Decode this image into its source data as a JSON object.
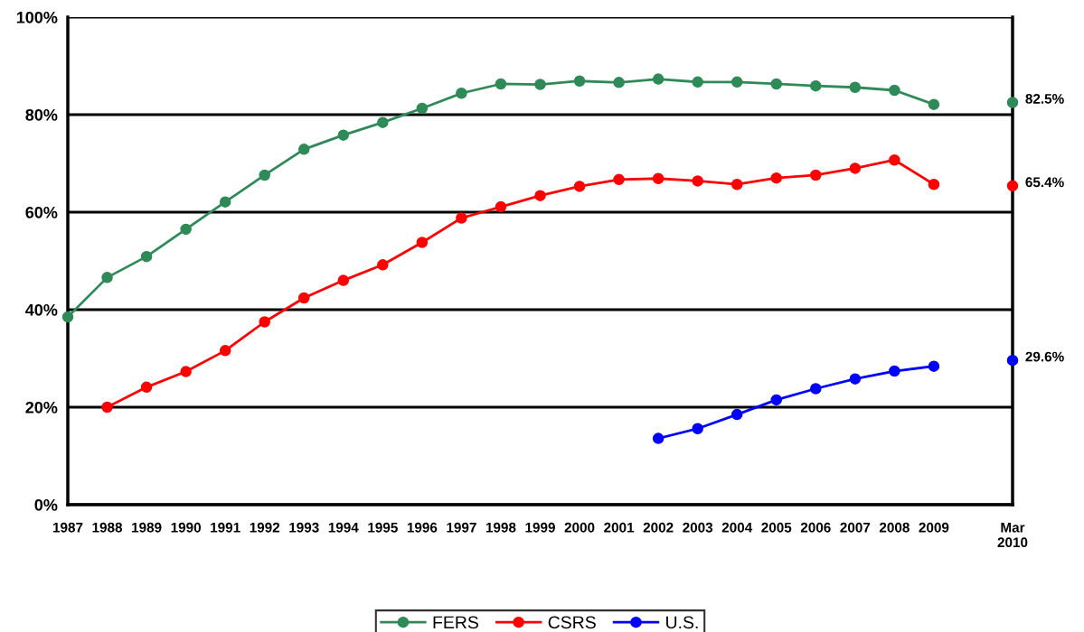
{
  "chart_data": {
    "type": "line",
    "categories": [
      "1987",
      "1988",
      "1989",
      "1990",
      "1991",
      "1992",
      "1993",
      "1994",
      "1995",
      "1996",
      "1997",
      "1998",
      "1999",
      "2000",
      "2001",
      "2002",
      "2003",
      "2004",
      "2005",
      "2006",
      "2007",
      "2008",
      "2009",
      null,
      "Mar\n2010"
    ],
    "series": [
      {
        "name": "FERS",
        "color": "#2e8b57",
        "values": [
          38.5,
          46.6,
          50.9,
          56.5,
          62.1,
          67.6,
          72.9,
          75.8,
          78.4,
          81.3,
          84.4,
          86.3,
          86.2,
          86.9,
          86.6,
          87.3,
          86.7,
          86.7,
          86.3,
          85.9,
          85.6,
          85.0,
          82.1,
          null,
          82.5
        ],
        "value_labels": [
          null,
          null,
          null,
          null,
          null,
          null,
          null,
          null,
          null,
          null,
          null,
          null,
          null,
          null,
          null,
          null,
          null,
          null,
          null,
          null,
          null,
          null,
          null,
          null,
          "82.5%"
        ]
      },
      {
        "name": "CSRS",
        "color": "#ff0000",
        "values": [
          null,
          20.0,
          24.1,
          27.3,
          31.6,
          37.5,
          42.4,
          46.0,
          49.2,
          53.8,
          58.8,
          61.1,
          63.4,
          65.3,
          66.7,
          66.9,
          66.4,
          65.7,
          67.0,
          67.6,
          69.0,
          70.7,
          65.7,
          null,
          65.4
        ],
        "value_labels": [
          null,
          null,
          null,
          null,
          null,
          null,
          null,
          null,
          null,
          null,
          null,
          null,
          null,
          null,
          null,
          null,
          null,
          null,
          null,
          null,
          null,
          null,
          null,
          null,
          "65.4%"
        ]
      },
      {
        "name": "U.S.",
        "color": "#0000ff",
        "values": [
          null,
          null,
          null,
          null,
          null,
          null,
          null,
          null,
          null,
          null,
          null,
          null,
          null,
          null,
          null,
          13.6,
          15.6,
          18.5,
          21.5,
          23.8,
          25.8,
          27.4,
          28.4,
          null,
          29.6
        ],
        "value_labels": [
          null,
          null,
          null,
          null,
          null,
          null,
          null,
          null,
          null,
          null,
          null,
          null,
          null,
          null,
          null,
          null,
          null,
          null,
          null,
          null,
          null,
          null,
          null,
          null,
          "29.6%"
        ]
      }
    ],
    "ylim": [
      0,
      100
    ],
    "yticks": [
      {
        "value": 0,
        "label": "0%"
      },
      {
        "value": 20,
        "label": "20%"
      },
      {
        "value": 40,
        "label": "40%"
      },
      {
        "value": 60,
        "label": "60%"
      },
      {
        "value": 80,
        "label": "80%"
      },
      {
        "value": 100,
        "label": "100%"
      }
    ],
    "grid": "y",
    "legend": "bottom",
    "marker": "circle",
    "line_style": "solid"
  }
}
